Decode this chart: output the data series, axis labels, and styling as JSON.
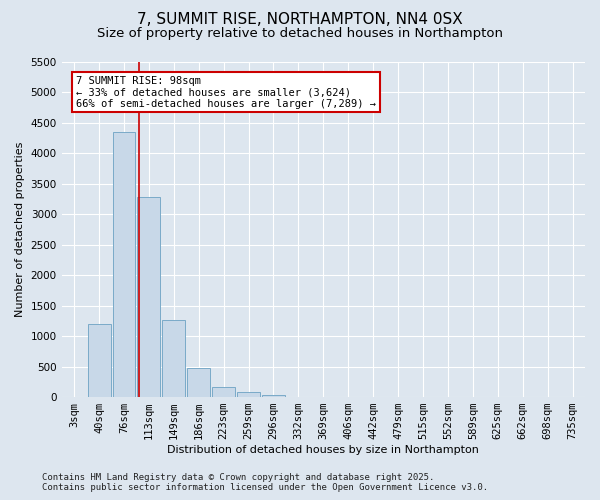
{
  "title": "7, SUMMIT RISE, NORTHAMPTON, NN4 0SX",
  "subtitle": "Size of property relative to detached houses in Northampton",
  "xlabel": "Distribution of detached houses by size in Northampton",
  "ylabel": "Number of detached properties",
  "categories": [
    "3sqm",
    "40sqm",
    "76sqm",
    "113sqm",
    "149sqm",
    "186sqm",
    "223sqm",
    "259sqm",
    "296sqm",
    "332sqm",
    "369sqm",
    "406sqm",
    "442sqm",
    "479sqm",
    "515sqm",
    "552sqm",
    "589sqm",
    "625sqm",
    "662sqm",
    "698sqm",
    "735sqm"
  ],
  "values": [
    0,
    1200,
    4350,
    3280,
    1260,
    480,
    170,
    80,
    30,
    0,
    0,
    0,
    0,
    0,
    0,
    0,
    0,
    0,
    0,
    0,
    0
  ],
  "bar_color": "#c8d8e8",
  "bar_edge_color": "#7aaac8",
  "vline_color": "#cc0000",
  "annotation_text": "7 SUMMIT RISE: 98sqm\n← 33% of detached houses are smaller (3,624)\n66% of semi-detached houses are larger (7,289) →",
  "annotation_box_facecolor": "#ffffff",
  "annotation_box_edgecolor": "#cc0000",
  "ylim": [
    0,
    5500
  ],
  "yticks": [
    0,
    500,
    1000,
    1500,
    2000,
    2500,
    3000,
    3500,
    4000,
    4500,
    5000,
    5500
  ],
  "bg_color": "#dde6ef",
  "plot_bg_color": "#dde6ef",
  "footer": "Contains HM Land Registry data © Crown copyright and database right 2025.\nContains public sector information licensed under the Open Government Licence v3.0.",
  "title_fontsize": 11,
  "subtitle_fontsize": 9.5,
  "axis_label_fontsize": 8,
  "tick_fontsize": 7.5,
  "annotation_fontsize": 7.5,
  "footer_fontsize": 6.5
}
